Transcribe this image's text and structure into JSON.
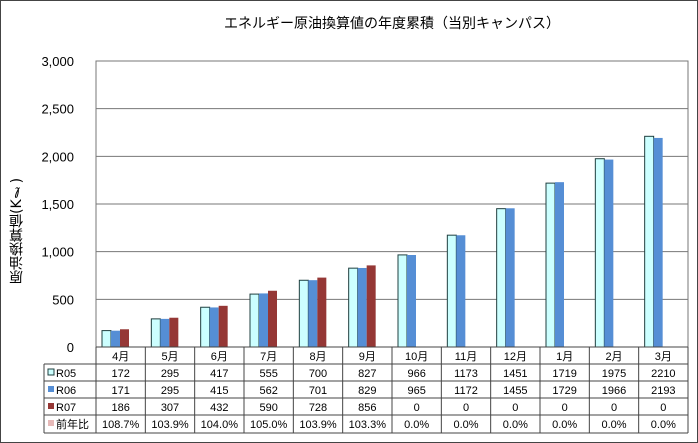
{
  "chart_data": {
    "type": "bar",
    "title": "エネルギー原油換算値の年度累積（当別キャンパス）",
    "ylabel": "原油換算値(Kℓ)",
    "ylim": [
      0,
      3000
    ],
    "yticks": [
      "0",
      "500",
      "1,000",
      "1,500",
      "2,000",
      "2,500",
      "3,000"
    ],
    "grid": true,
    "categories": [
      "4月",
      "5月",
      "6月",
      "7月",
      "8月",
      "9月",
      "10月",
      "11月",
      "12月",
      "1月",
      "2月",
      "3月"
    ],
    "series": [
      {
        "name": "R05",
        "color": "#ccffff",
        "values": [
          172,
          295,
          417,
          555,
          700,
          827,
          966,
          1173,
          1451,
          1719,
          1975,
          2210
        ],
        "labels": [
          "172",
          "295",
          "417",
          "555",
          "700",
          "827",
          "966",
          "1173",
          "1451",
          "1719",
          "1975",
          "2210"
        ]
      },
      {
        "name": "R06",
        "color": "#558ed5",
        "values": [
          171,
          295,
          415,
          562,
          701,
          829,
          965,
          1172,
          1455,
          1729,
          1966,
          2193
        ],
        "labels": [
          "171",
          "295",
          "415",
          "562",
          "701",
          "829",
          "965",
          "1172",
          "1455",
          "1729",
          "1966",
          "2193"
        ]
      },
      {
        "name": "R07",
        "color": "#953735",
        "values": [
          186,
          307,
          432,
          590,
          728,
          856,
          0,
          0,
          0,
          0,
          0,
          0
        ],
        "labels": [
          "186",
          "307",
          "432",
          "590",
          "728",
          "856",
          "0",
          "0",
          "0",
          "0",
          "0",
          "0"
        ]
      },
      {
        "name": "前年比",
        "color": "#e6b9b8",
        "values": [
          108.7,
          103.9,
          104.0,
          105.0,
          103.9,
          103.3,
          0,
          0,
          0,
          0,
          0,
          0
        ],
        "labels": [
          "108.7%",
          "103.9%",
          "104.0%",
          "105.0%",
          "103.9%",
          "103.3%",
          "0.0%",
          "0.0%",
          "0.0%",
          "0.0%",
          "0.0%",
          "0.0%"
        ]
      }
    ],
    "legend": "data-table"
  }
}
